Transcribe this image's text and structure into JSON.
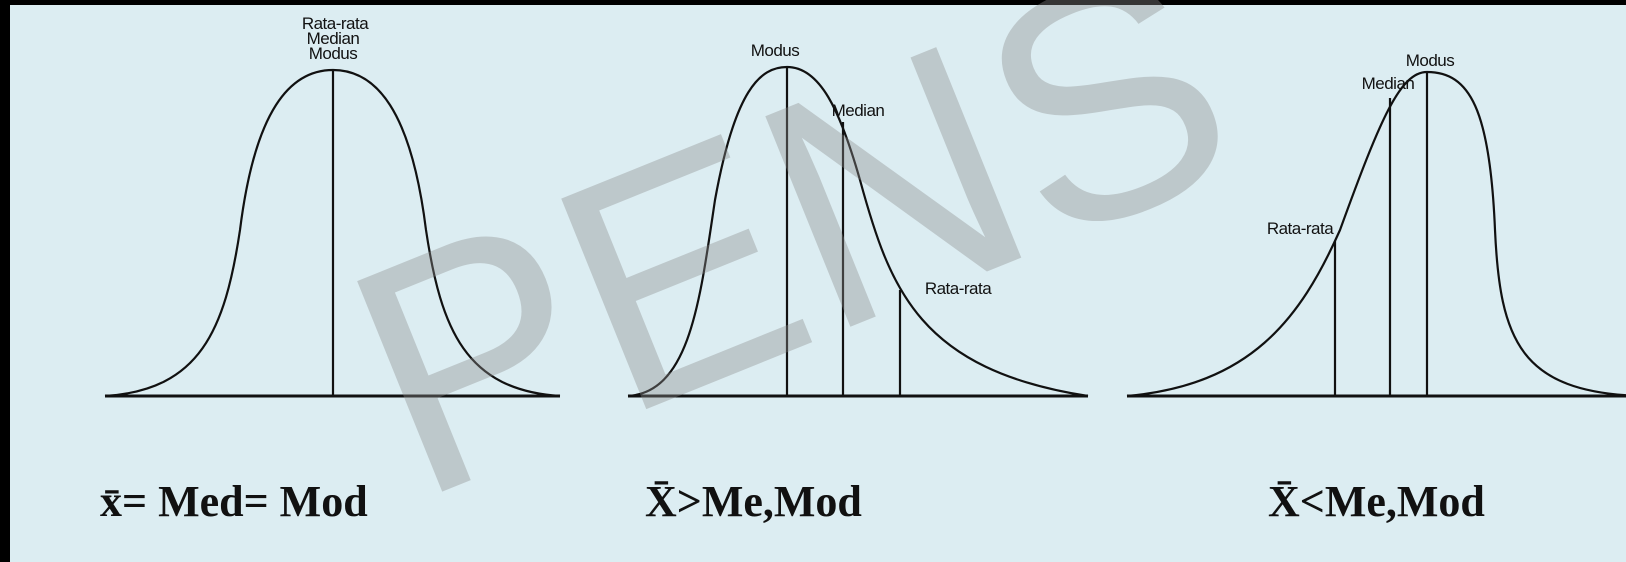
{
  "watermark": "PENS",
  "panels": [
    {
      "labels": [
        "Rata-rata",
        "Median",
        "Modus"
      ],
      "formula": "x̄= Med= Mod"
    },
    {
      "labels": [
        "Modus",
        "Median",
        "Rata-rata"
      ],
      "formula": "X̄>Me,Mod"
    },
    {
      "labels": [
        "Rata-rata",
        "Median",
        "Modus"
      ],
      "formula": "X̄<Me,Mod"
    }
  ]
}
